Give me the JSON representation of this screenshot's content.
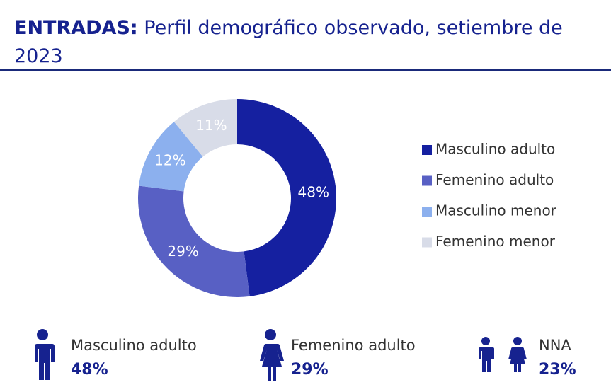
{
  "chart_data": {
    "type": "pie",
    "donut": true,
    "title_prefix": "ENTRADAS:",
    "title": "Perfil demográfico observado, setiembre de 2023",
    "categories": [
      "Masculino adulto",
      "Femenino adulto",
      "Masculino menor",
      "Femenino menor"
    ],
    "values": [
      48,
      29,
      12,
      11
    ],
    "value_labels": [
      "48%",
      "29%",
      "12%",
      "11%"
    ],
    "colors": [
      "#1520a0",
      "#5860c4",
      "#8cb0ee",
      "#d8dce8"
    ],
    "legend": "right"
  },
  "summary": [
    {
      "label": "Masculino adulto",
      "text": "48%"
    },
    {
      "label": "Femenino adulto",
      "text": "29%"
    },
    {
      "label": "NNA",
      "text": "23%"
    }
  ]
}
